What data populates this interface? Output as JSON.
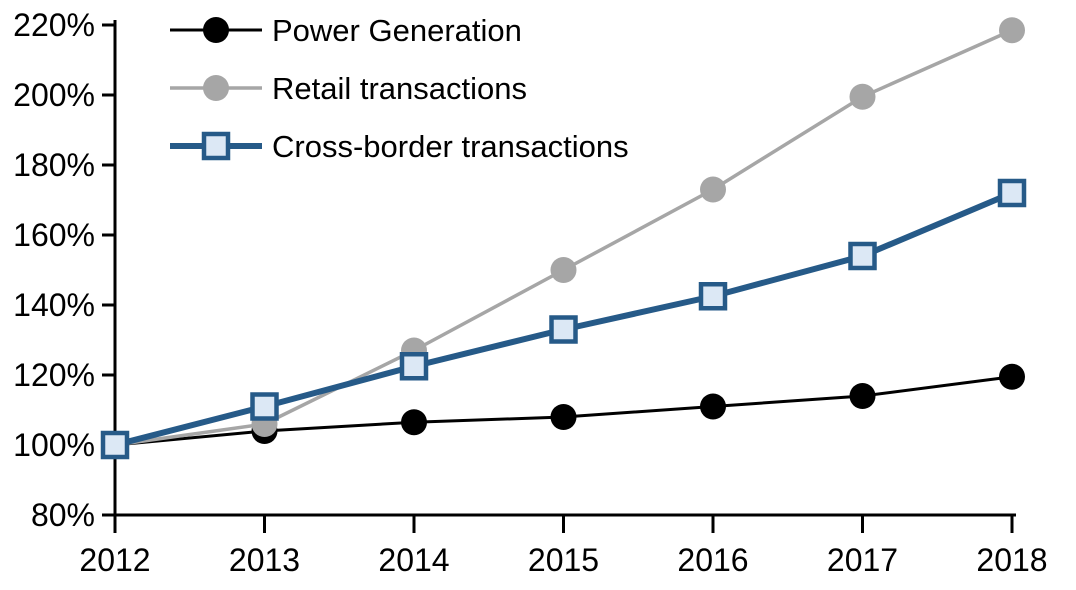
{
  "chart_data": {
    "type": "line",
    "title": "",
    "categories": [
      "2012",
      "2013",
      "2014",
      "2015",
      "2016",
      "2017",
      "2018"
    ],
    "series": [
      {
        "name": "Power Generation",
        "values": [
          100,
          104,
          106.5,
          108,
          111,
          114,
          119.5
        ],
        "color": "#000000",
        "marker": "circle",
        "marker_fill": "#000000",
        "line_width": 3
      },
      {
        "name": "Retail transactions",
        "values": [
          100,
          106,
          127,
          150,
          173,
          199.5,
          218.5
        ],
        "color": "#A6A6A6",
        "marker": "circle",
        "marker_fill": "#A6A6A6",
        "line_width": 3.5
      },
      {
        "name": "Cross-border transactions",
        "values": [
          100,
          111,
          122.5,
          133,
          142.5,
          154,
          172
        ],
        "color": "#265A88",
        "marker": "square",
        "marker_fill": "#DCE8F5",
        "line_width": 6
      }
    ],
    "xlabel": "",
    "ylabel": "",
    "ylim": [
      80,
      220
    ],
    "ytick_step": 20,
    "ytick_labels": [
      "80%",
      "100%",
      "120%",
      "140%",
      "160%",
      "180%",
      "200%",
      "220%"
    ],
    "grid": false,
    "legend_position": "top-left-inside",
    "axis_color": "#000000",
    "background": "#FFFFFF"
  }
}
